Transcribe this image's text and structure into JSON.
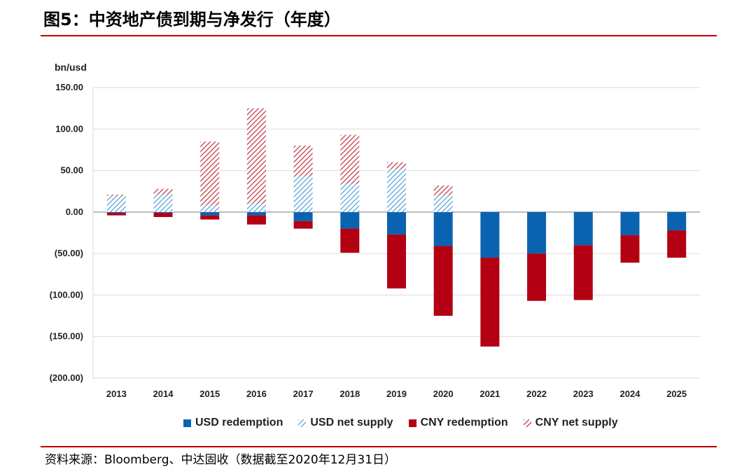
{
  "title": "图5：中资地产债到期与净发行（年度）",
  "source": "资料来源：Bloomberg、中达固收（数据截至2020年12月31日）",
  "colors": {
    "usd": "#0a63b0",
    "usd_hatch": "#6fb0de",
    "cny": "#b30012",
    "cny_hatch": "#c0303c",
    "accent": "#c00000"
  },
  "chart_data": {
    "type": "bar",
    "stacked": true,
    "unit_label": "bn/usd",
    "categories": [
      "2013",
      "2014",
      "2015",
      "2016",
      "2017",
      "2018",
      "2019",
      "2020",
      "2021",
      "2022",
      "2023",
      "2024",
      "2025"
    ],
    "ylim": [
      -200,
      150
    ],
    "yticks": [
      150,
      100,
      50,
      0,
      -50,
      -100,
      -150,
      -200
    ],
    "ytick_labels": [
      "150.00",
      "100.00",
      "50.00",
      "0.00",
      "(50.00)",
      "(100.00)",
      "(150.00)",
      "(200.00)"
    ],
    "grid": true,
    "legend_position": "bottom",
    "series": [
      {
        "name": "USD redemption",
        "pattern": "solid",
        "color_key": "usd",
        "values": [
          -1,
          -1,
          -4,
          -4,
          -11,
          -20,
          -27,
          -41,
          -55,
          -50,
          -40,
          -28,
          -22
        ]
      },
      {
        "name": "USD net supply",
        "pattern": "hatch",
        "color_key": "usd_hatch",
        "values": [
          19,
          21,
          8,
          10,
          43,
          34,
          52,
          20,
          0,
          0,
          0,
          0,
          0
        ]
      },
      {
        "name": "CNY redemption",
        "pattern": "solid",
        "color_key": "cny",
        "values": [
          -3,
          -5,
          -5,
          -11,
          -9,
          -29,
          -65,
          -84,
          -107,
          -57,
          -66,
          -33,
          -33
        ]
      },
      {
        "name": "CNY net supply",
        "pattern": "hatch",
        "color_key": "cny_hatch",
        "values": [
          2,
          7,
          77,
          115,
          37,
          59,
          8,
          12,
          0,
          0,
          0,
          0,
          0
        ]
      }
    ]
  }
}
